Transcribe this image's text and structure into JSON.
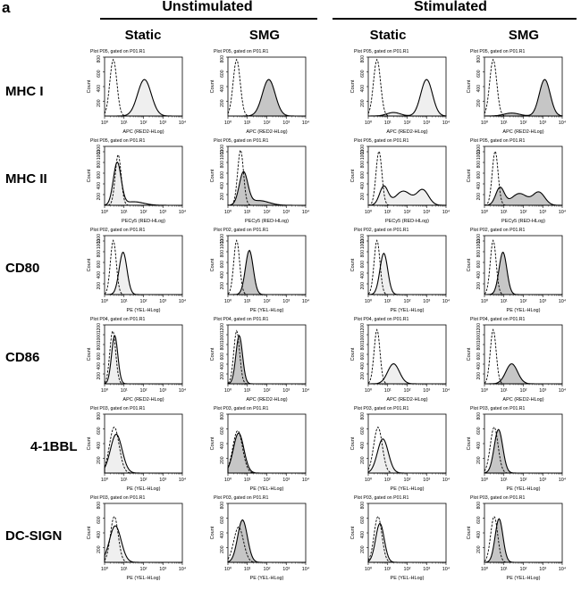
{
  "panel_label": "a",
  "groups": [
    "Unstimulated",
    "Stimulated"
  ],
  "columns": [
    "Static",
    "SMG",
    "Static",
    "SMG"
  ],
  "rows": [
    "MHC I",
    "MHC II",
    "CD80",
    "CD86",
    "4-1BBL",
    "DC-SIGN"
  ],
  "styles": {
    "control_stroke": "#000000",
    "static_fill": "#efefef",
    "smg_fill": "#c6c6c6",
    "axis": "#000000"
  },
  "chart_data": {
    "type": "flow-cytometry-histogram-grid",
    "x_scale": "log",
    "x_range": [
      1,
      10000
    ],
    "x_ticks": [
      "10⁰",
      "10¹",
      "10²",
      "10³",
      "10⁴"
    ],
    "y_label": "Count",
    "panels": [
      {
        "row": "MHC I",
        "group": "Unstimulated",
        "condition": "Static",
        "plot_title": "Plot P05, gated on P01.R1",
        "xlabel": "APC (RED2-HLog)",
        "ymax": 800,
        "yticks": [
          "800",
          "600",
          "400",
          "200"
        ],
        "control": {
          "peaks": [
            [
              0.45,
              0.18,
              0.96
            ]
          ]
        },
        "sample": {
          "peaks": [
            [
              2.05,
              0.35,
              0.62
            ]
          ]
        }
      },
      {
        "row": "MHC I",
        "group": "Unstimulated",
        "condition": "SMG",
        "plot_title": "Plot P05, gated on P01.R1",
        "xlabel": "APC (RED2-HLog)",
        "ymax": 800,
        "yticks": [
          "800",
          "600",
          "400",
          "200"
        ],
        "control": {
          "peaks": [
            [
              0.45,
              0.18,
              0.96
            ]
          ]
        },
        "sample": {
          "peaks": [
            [
              2.1,
              0.33,
              0.62
            ]
          ]
        }
      },
      {
        "row": "MHC I",
        "group": "Stimulated",
        "condition": "Static",
        "plot_title": "Plot P05, gated on P01.R1",
        "xlabel": "APC (RED2-HLog)",
        "ymax": 800,
        "yticks": [
          "800",
          "600",
          "400",
          "200"
        ],
        "control": {
          "peaks": [
            [
              0.45,
              0.18,
              0.96
            ]
          ]
        },
        "sample": {
          "peaks": [
            [
              3.0,
              0.3,
              0.62
            ],
            [
              1.3,
              0.35,
              0.06
            ]
          ]
        }
      },
      {
        "row": "MHC I",
        "group": "Stimulated",
        "condition": "SMG",
        "plot_title": "Plot P05, gated on P01.R1",
        "xlabel": "APC (RED2-HLog)",
        "ymax": 800,
        "yticks": [
          "800",
          "600",
          "400",
          "200"
        ],
        "control": {
          "peaks": [
            [
              0.45,
              0.18,
              0.96
            ]
          ]
        },
        "sample": {
          "peaks": [
            [
              3.1,
              0.28,
              0.62
            ],
            [
              1.4,
              0.4,
              0.05
            ]
          ]
        }
      },
      {
        "row": "MHC II",
        "group": "Unstimulated",
        "condition": "Static",
        "plot_title": "Plot P05, gated on P01.R1",
        "xlabel": "PECy5 (RED-HLog)",
        "ymax": 1100,
        "yticks": [
          "1100",
          "1000",
          "800",
          "600",
          "400",
          "200"
        ],
        "control": {
          "peaks": [
            [
              0.7,
              0.15,
              0.86
            ]
          ]
        },
        "sample": {
          "peaks": [
            [
              0.65,
              0.2,
              0.72
            ],
            [
              1.5,
              0.5,
              0.06
            ]
          ]
        }
      },
      {
        "row": "MHC II",
        "group": "Unstimulated",
        "condition": "SMG",
        "plot_title": "Plot P05, gated on P01.R1",
        "xlabel": "PECy5 (RED-HLog)",
        "ymax": 1100,
        "yticks": [
          "1100",
          "1000",
          "800",
          "600",
          "400",
          "200"
        ],
        "control": {
          "peaks": [
            [
              0.65,
              0.15,
              0.94
            ]
          ]
        },
        "sample": {
          "peaks": [
            [
              0.8,
              0.22,
              0.55
            ],
            [
              1.6,
              0.5,
              0.08
            ]
          ]
        }
      },
      {
        "row": "MHC II",
        "group": "Stimulated",
        "condition": "Static",
        "plot_title": "Plot P05, gated on P01.R1",
        "xlabel": "PECy5 (RED-HLog)",
        "ymax": 1100,
        "yticks": [
          "1100",
          "1000",
          "800",
          "600",
          "400",
          "200"
        ],
        "control": {
          "peaks": [
            [
              0.55,
              0.15,
              0.92
            ]
          ]
        },
        "sample": {
          "peaks": [
            [
              0.8,
              0.22,
              0.32
            ],
            [
              1.8,
              0.4,
              0.24
            ],
            [
              2.8,
              0.3,
              0.26
            ]
          ]
        }
      },
      {
        "row": "MHC II",
        "group": "Stimulated",
        "condition": "SMG",
        "plot_title": "Plot P05, gated on P01.R1",
        "xlabel": "PECy5 (RED-HLog)",
        "ymax": 1100,
        "yticks": [
          "1100",
          "1000",
          "800",
          "600",
          "400",
          "200"
        ],
        "control": {
          "peaks": [
            [
              0.55,
              0.15,
              0.92
            ]
          ]
        },
        "sample": {
          "peaks": [
            [
              0.8,
              0.22,
              0.3
            ],
            [
              1.8,
              0.4,
              0.2
            ],
            [
              2.8,
              0.3,
              0.22
            ]
          ]
        }
      },
      {
        "row": "CD80",
        "group": "Unstimulated",
        "condition": "Static",
        "plot_title": "Plot P02, gated on P01.R1",
        "xlabel": "PE (YEL-HLog)",
        "ymax": 1100,
        "yticks": [
          "1100",
          "1000",
          "800",
          "600",
          "400",
          "200"
        ],
        "control": {
          "peaks": [
            [
              0.45,
              0.15,
              0.92
            ]
          ]
        },
        "sample": {
          "peaks": [
            [
              0.95,
              0.2,
              0.72
            ]
          ]
        }
      },
      {
        "row": "CD80",
        "group": "Unstimulated",
        "condition": "SMG",
        "plot_title": "Plot P02, gated on P01.R1",
        "xlabel": "PE (YEL-HLog)",
        "ymax": 1100,
        "yticks": [
          "1100",
          "1000",
          "800",
          "600",
          "400",
          "200"
        ],
        "control": {
          "peaks": [
            [
              0.45,
              0.15,
              0.92
            ]
          ]
        },
        "sample": {
          "peaks": [
            [
              1.1,
              0.2,
              0.75
            ]
          ]
        }
      },
      {
        "row": "CD80",
        "group": "Stimulated",
        "condition": "Static",
        "plot_title": "Plot P02, gated on P01.R1",
        "xlabel": "PE (YEL-HLog)",
        "ymax": 1100,
        "yticks": [
          "1100",
          "1000",
          "800",
          "600",
          "400",
          "200"
        ],
        "control": {
          "peaks": [
            [
              0.45,
              0.15,
              0.92
            ]
          ]
        },
        "sample": {
          "peaks": [
            [
              0.8,
              0.2,
              0.7
            ]
          ]
        }
      },
      {
        "row": "CD80",
        "group": "Stimulated",
        "condition": "SMG",
        "plot_title": "Plot P02, gated on P01.R1",
        "xlabel": "PE (YEL-HLog)",
        "ymax": 1100,
        "yticks": [
          "1100",
          "1000",
          "800",
          "600",
          "400",
          "200"
        ],
        "control": {
          "peaks": [
            [
              0.45,
              0.15,
              0.92
            ]
          ]
        },
        "sample": {
          "peaks": [
            [
              0.95,
              0.2,
              0.72
            ]
          ]
        }
      },
      {
        "row": "CD86",
        "group": "Unstimulated",
        "condition": "Static",
        "plot_title": "Plot P04, gated on P01.R1",
        "xlabel": "APC (RED2-HLog)",
        "ymax": 1200,
        "yticks": [
          "1200",
          "1000",
          "800",
          "600",
          "400",
          "200"
        ],
        "control": {
          "peaks": [
            [
              0.42,
              0.15,
              0.9
            ]
          ]
        },
        "sample": {
          "peaks": [
            [
              0.52,
              0.16,
              0.82
            ]
          ]
        }
      },
      {
        "row": "CD86",
        "group": "Unstimulated",
        "condition": "SMG",
        "plot_title": "Plot P04, gated on P01.R1",
        "xlabel": "APC (RED2-HLog)",
        "ymax": 1200,
        "yticks": [
          "1200",
          "1000",
          "800",
          "600",
          "400",
          "200"
        ],
        "control": {
          "peaks": [
            [
              0.45,
              0.15,
              0.9
            ]
          ]
        },
        "sample": {
          "peaks": [
            [
              0.58,
              0.17,
              0.82
            ]
          ]
        }
      },
      {
        "row": "CD86",
        "group": "Stimulated",
        "condition": "Static",
        "plot_title": "Plot P04, gated on P01.R1",
        "xlabel": "APC (RED2-HLog)",
        "ymax": 1200,
        "yticks": [
          "1200",
          "1000",
          "800",
          "600",
          "400",
          "200"
        ],
        "control": {
          "peaks": [
            [
              0.45,
              0.15,
              0.92
            ]
          ]
        },
        "sample": {
          "peaks": [
            [
              1.3,
              0.3,
              0.34
            ]
          ]
        }
      },
      {
        "row": "CD86",
        "group": "Stimulated",
        "condition": "SMG",
        "plot_title": "Plot P04, gated on P01.R1",
        "xlabel": "APC (RED2-HLog)",
        "ymax": 1200,
        "yticks": [
          "1200",
          "1000",
          "800",
          "600",
          "400",
          "200"
        ],
        "control": {
          "peaks": [
            [
              0.45,
              0.15,
              0.92
            ]
          ]
        },
        "sample": {
          "peaks": [
            [
              1.4,
              0.3,
              0.34
            ]
          ]
        }
      },
      {
        "row": "4-1BBL",
        "group": "Unstimulated",
        "condition": "Static",
        "plot_title": "Plot P03, gated on P01.R1",
        "xlabel": "PE (YEL-HLog)",
        "ymax": 800,
        "yticks": [
          "800",
          "600",
          "400",
          "200"
        ],
        "control": {
          "peaks": [
            [
              0.5,
              0.25,
              0.78
            ]
          ]
        },
        "sample": {
          "peaks": [
            [
              0.6,
              0.3,
              0.66
            ]
          ]
        }
      },
      {
        "row": "4-1BBL",
        "group": "Unstimulated",
        "condition": "SMG",
        "plot_title": "Plot P03, gated on P01.R1",
        "xlabel": "PE (YEL-HLog)",
        "ymax": 800,
        "yticks": [
          "800",
          "600",
          "400",
          "200"
        ],
        "control": {
          "peaks": [
            [
              0.5,
              0.25,
              0.72
            ]
          ]
        },
        "sample": {
          "peaks": [
            [
              0.55,
              0.27,
              0.68
            ]
          ]
        }
      },
      {
        "row": "4-1BBL",
        "group": "Stimulated",
        "condition": "Static",
        "plot_title": "Plot P03, gated on P01.R1",
        "xlabel": "PE (YEL-HLog)",
        "ymax": 800,
        "yticks": [
          "800",
          "600",
          "400",
          "200"
        ],
        "control": {
          "peaks": [
            [
              0.5,
              0.22,
              0.78
            ]
          ]
        },
        "sample": {
          "peaks": [
            [
              0.75,
              0.28,
              0.58
            ]
          ]
        }
      },
      {
        "row": "4-1BBL",
        "group": "Stimulated",
        "condition": "SMG",
        "plot_title": "Plot P03, gated on P01.R1",
        "xlabel": "PE (YEL-HLog)",
        "ymax": 800,
        "yticks": [
          "800",
          "600",
          "400",
          "200"
        ],
        "control": {
          "peaks": [
            [
              0.5,
              0.2,
              0.78
            ]
          ]
        },
        "sample": {
          "peaks": [
            [
              0.72,
              0.22,
              0.74
            ]
          ]
        }
      },
      {
        "row": "DC-SIGN",
        "group": "Unstimulated",
        "condition": "Static",
        "plot_title": "Plot P03, gated on P01.R1",
        "xlabel": "PE (YEL-HLog)",
        "ymax": 800,
        "yticks": [
          "800",
          "600",
          "400",
          "200"
        ],
        "control": {
          "peaks": [
            [
              0.5,
              0.2,
              0.78
            ]
          ]
        },
        "sample": {
          "peaks": [
            [
              0.55,
              0.3,
              0.62
            ]
          ]
        }
      },
      {
        "row": "DC-SIGN",
        "group": "Unstimulated",
        "condition": "SMG",
        "plot_title": "Plot P03, gated on P01.R1",
        "xlabel": "PE (YEL-HLog)",
        "ymax": 800,
        "yticks": [
          "800",
          "600",
          "400",
          "200"
        ],
        "control": {
          "peaks": [
            [
              0.55,
              0.25,
              0.6
            ]
          ]
        },
        "sample": {
          "peaks": [
            [
              0.75,
              0.25,
              0.72
            ]
          ]
        }
      },
      {
        "row": "DC-SIGN",
        "group": "Stimulated",
        "condition": "Static",
        "plot_title": "Plot P03, gated on P01.R1",
        "xlabel": "PE (YEL-HLog)",
        "ymax": 800,
        "yticks": [
          "800",
          "600",
          "400",
          "200"
        ],
        "control": {
          "peaks": [
            [
              0.5,
              0.2,
              0.78
            ]
          ]
        },
        "sample": {
          "peaks": [
            [
              0.6,
              0.22,
              0.66
            ]
          ]
        }
      },
      {
        "row": "DC-SIGN",
        "group": "Stimulated",
        "condition": "SMG",
        "plot_title": "Plot P03, gated on P01.R1",
        "xlabel": "PE (YEL-HLog)",
        "ymax": 800,
        "yticks": [
          "800",
          "600",
          "400",
          "200"
        ],
        "control": {
          "peaks": [
            [
              0.5,
              0.18,
              0.78
            ]
          ]
        },
        "sample": {
          "peaks": [
            [
              0.75,
              0.2,
              0.74
            ]
          ]
        }
      }
    ]
  }
}
